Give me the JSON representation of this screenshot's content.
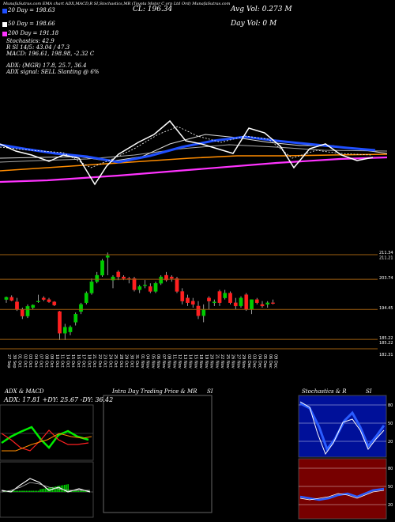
{
  "header": {
    "topline": "MunafaSutras.com  EMA chart ADX,MACD,R  SI,Stochastics,MR  (Toyota Motor C  orp Ltd Ord) MunafaSutras.com",
    "close_label": "CL: 196.34",
    "title_company": "(Toyota Motor Corp Ltd Ord) MunafaSutras.com",
    "avg_vol": "Avg Vol: 0.273 M",
    "day_vol": "Day Vol: 0   M"
  },
  "indicators": {
    "ema20": "20  Day  = 198.63",
    "ema50": "50  Day  = 198.66",
    "ema200": "200  Day  = 191.18",
    "stochastics": "Stochastics: 42.9",
    "rsi": "R            SI 14/5: 43.04  / 47.3",
    "macd": "MACD: 196.61,  198.98,  -2.32  C",
    "adx": "ADX:                         (MGR) 17.8,  25.7,  36.4",
    "adx_signal": "ADX   signal: SELL  Slanting @ 6%"
  },
  "colors": {
    "ema20": "#1f4fff",
    "ema50": "#ffffff",
    "ema200": "#ff8c00",
    "long": "#ff33ff",
    "up": "#00cc00",
    "down": "#ff2020"
  },
  "price_levels": [
    "211.34",
    "211.21",
    "203.74",
    "194.45",
    "185.22",
    "185.22",
    "182.31"
  ],
  "dates": [
    "27 Sep",
    "30 Sep",
    "01 Oct",
    "02 Oct",
    "03 Oct",
    "04 Oct",
    "07 Oct",
    "08 Oct",
    "09 Oct",
    "10 Oct",
    "11 Oct",
    "14 Oct",
    "15 Oct",
    "16 Oct",
    "17 Oct",
    "18 Oct",
    "21 Oct",
    "22 Oct",
    "23 Oct",
    "24 Oct",
    "25 Oct",
    "28 Oct",
    "29 Oct",
    "30 Oct",
    "31 Oct",
    "01 Nov",
    "04 Nov",
    "05 Nov",
    "06 Nov",
    "07 Nov",
    "08 Nov",
    "11 Nov",
    "12 Nov",
    "13 Nov",
    "14 Nov",
    "15 Nov",
    "18 Nov",
    "19 Nov",
    "20 Nov",
    "21 Nov",
    "22 Nov",
    "25 Nov",
    "26 Nov",
    "27 Nov",
    "29 Nov",
    "02 Dec",
    "03 Dec",
    "04 Dec",
    "05 Dec",
    "06 Dec",
    "09 Dec"
  ],
  "panels": {
    "adx_title": "ADX  & MACD",
    "adx_values": "ADX: 17.81  +DY: 25.67  -DY: 36.42",
    "intra_title": "Intra  Day Trading Price  & MR",
    "intra_si": "SI",
    "stoch_title": "Stochastics & R",
    "stoch_si": "SI",
    "stoch_ticks": [
      "80",
      "50",
      "20"
    ],
    "rsi_ticks": [
      "80",
      "50",
      "20"
    ]
  },
  "chart_data": [
    {
      "type": "line",
      "name": "candlestick-price",
      "x": [
        "27 Sep",
        "30 Sep",
        "01 Oct",
        "02 Oct",
        "03 Oct",
        "04 Oct",
        "07 Oct",
        "08 Oct",
        "09 Oct",
        "10 Oct",
        "11 Oct",
        "14 Oct",
        "15 Oct",
        "16 Oct",
        "17 Oct",
        "18 Oct",
        "21 Oct",
        "22 Oct",
        "23 Oct",
        "24 Oct",
        "25 Oct",
        "28 Oct",
        "29 Oct",
        "30 Oct",
        "31 Oct",
        "01 Nov",
        "04 Nov",
        "05 Nov",
        "06 Nov",
        "07 Nov",
        "08 Nov",
        "11 Nov",
        "12 Nov",
        "13 Nov",
        "14 Nov",
        "15 Nov",
        "18 Nov",
        "19 Nov",
        "20 Nov",
        "21 Nov",
        "22 Nov",
        "25 Nov",
        "26 Nov",
        "27 Nov",
        "29 Nov",
        "02 Dec",
        "03 Dec",
        "04 Dec",
        "05 Dec",
        "06 Dec",
        "09 Dec"
      ],
      "open": [
        197.5,
        198.2,
        196.8,
        194.4,
        192.4,
        195.0,
        197.0,
        198.0,
        197.5,
        196.8,
        193.8,
        187.1,
        187.5,
        190.5,
        193.8,
        196.5,
        199.5,
        203.0,
        205.0,
        210.5,
        203.5,
        206.0,
        204.5,
        204.0,
        204.0,
        200.5,
        202.0,
        201.5,
        200.0,
        202.5,
        205.0,
        204.5,
        204.0,
        200.0,
        198.0,
        197.0,
        195.5,
        192.5,
        198.0,
        196.5,
        200.0,
        198.0,
        199.5,
        196.5,
        195.5,
        199.0,
        194.5,
        197.5,
        196.0,
        196.0,
        196.5
      ],
      "high": [
        198.4,
        198.8,
        198.0,
        195.0,
        196.0,
        196.0,
        199.0,
        198.5,
        198.0,
        197.0,
        194.0,
        190.0,
        189.5,
        193.5,
        196.5,
        200.0,
        204.0,
        206.0,
        210.0,
        212.0,
        205.0,
        206.5,
        205.0,
        204.5,
        204.5,
        202.0,
        203.5,
        202.5,
        203.0,
        205.0,
        206.0,
        205.0,
        204.5,
        201.0,
        199.0,
        198.0,
        197.0,
        196.0,
        198.5,
        197.5,
        200.5,
        200.5,
        200.0,
        198.0,
        198.5,
        199.5,
        197.5,
        198.0,
        197.0,
        197.0,
        197.5
      ],
      "low": [
        196.5,
        197.0,
        194.0,
        191.5,
        191.8,
        194.5,
        196.5,
        197.0,
        196.5,
        195.5,
        185.0,
        185.0,
        186.5,
        189.5,
        193.0,
        196.0,
        199.0,
        202.5,
        204.5,
        205.0,
        201.0,
        203.5,
        203.5,
        202.5,
        200.0,
        199.5,
        201.0,
        199.5,
        199.5,
        202.0,
        203.0,
        203.0,
        199.5,
        196.0,
        195.5,
        195.0,
        191.5,
        190.5,
        194.5,
        195.5,
        195.5,
        197.5,
        196.0,
        194.5,
        195.0,
        194.0,
        193.0,
        196.0,
        195.0,
        195.0,
        196.0
      ],
      "close": [
        198.2,
        197.2,
        194.4,
        192.4,
        195.4,
        195.8,
        197.0,
        197.5,
        196.8,
        195.8,
        187.1,
        189.0,
        189.0,
        193.0,
        196.0,
        199.5,
        203.0,
        205.0,
        209.5,
        211.0,
        204.5,
        204.5,
        204.0,
        203.8,
        200.5,
        201.5,
        202.0,
        200.0,
        202.5,
        204.5,
        203.5,
        204.0,
        200.0,
        197.0,
        196.5,
        196.0,
        192.5,
        194.5,
        197.0,
        196.8,
        196.5,
        199.5,
        196.5,
        195.5,
        198.0,
        194.5,
        197.5,
        196.5,
        195.5,
        196.5,
        196.3
      ],
      "ylim": [
        182.31,
        211.34
      ]
    }
  ]
}
